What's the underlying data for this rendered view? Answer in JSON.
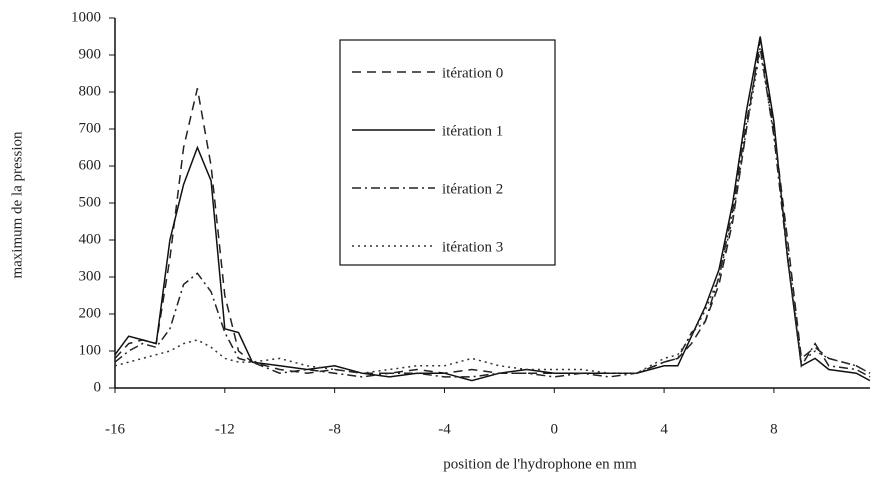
{
  "chart_data": {
    "type": "line",
    "xlabel": "position de l'hydrophone en mm",
    "ylabel": "maximum de la pression",
    "x": [
      -16,
      -15.5,
      -15,
      -14.5,
      -14,
      -13.5,
      -13,
      -12.5,
      -12,
      -11.5,
      -11,
      -10,
      -9,
      -8,
      -7,
      -6,
      -5,
      -4,
      -3,
      -2,
      -1,
      0,
      1,
      2,
      3,
      4,
      4.5,
      5,
      5.5,
      6,
      6.5,
      7,
      7.5,
      8,
      8.5,
      9,
      9.5,
      10,
      11,
      11.5
    ],
    "series": [
      {
        "name": "itération 0",
        "color": "#222",
        "dash": "9,6",
        "values": [
          80,
          120,
          130,
          120,
          350,
          650,
          810,
          600,
          250,
          100,
          70,
          50,
          40,
          50,
          40,
          40,
          50,
          40,
          50,
          40,
          40,
          40,
          40,
          40,
          40,
          70,
          80,
          120,
          180,
          280,
          450,
          700,
          940,
          700,
          400,
          80,
          110,
          80,
          60,
          40
        ]
      },
      {
        "name": "itération 1",
        "color": "#111",
        "dash": "none",
        "values": [
          90,
          140,
          130,
          120,
          400,
          550,
          650,
          560,
          160,
          150,
          70,
          60,
          50,
          60,
          40,
          30,
          40,
          40,
          20,
          40,
          50,
          40,
          40,
          40,
          40,
          60,
          60,
          140,
          220,
          320,
          500,
          750,
          950,
          720,
          350,
          60,
          80,
          50,
          40,
          20
        ]
      },
      {
        "name": "itération 2",
        "color": "#222",
        "dash": "9,4,2,4",
        "values": [
          70,
          100,
          120,
          110,
          160,
          280,
          310,
          260,
          150,
          80,
          70,
          40,
          50,
          40,
          30,
          40,
          40,
          30,
          30,
          40,
          40,
          30,
          40,
          30,
          40,
          70,
          80,
          150,
          180,
          300,
          480,
          720,
          920,
          680,
          350,
          60,
          120,
          60,
          50,
          30
        ]
      },
      {
        "name": "itération 3",
        "color": "#333",
        "dash": "2,4",
        "values": [
          60,
          70,
          80,
          90,
          100,
          120,
          130,
          110,
          80,
          70,
          70,
          80,
          60,
          50,
          40,
          50,
          60,
          60,
          80,
          60,
          50,
          50,
          50,
          40,
          40,
          80,
          90,
          140,
          210,
          300,
          460,
          700,
          910,
          690,
          380,
          70,
          100,
          80,
          60,
          40
        ]
      }
    ],
    "xlim": [
      -16,
      11.5
    ],
    "xticks": [
      -16,
      -12,
      -8,
      -4,
      0,
      4,
      8
    ],
    "ylim": [
      0,
      1000
    ],
    "yticks": [
      0,
      100,
      200,
      300,
      400,
      500,
      600,
      700,
      800,
      900,
      1000
    ],
    "grid": false
  }
}
